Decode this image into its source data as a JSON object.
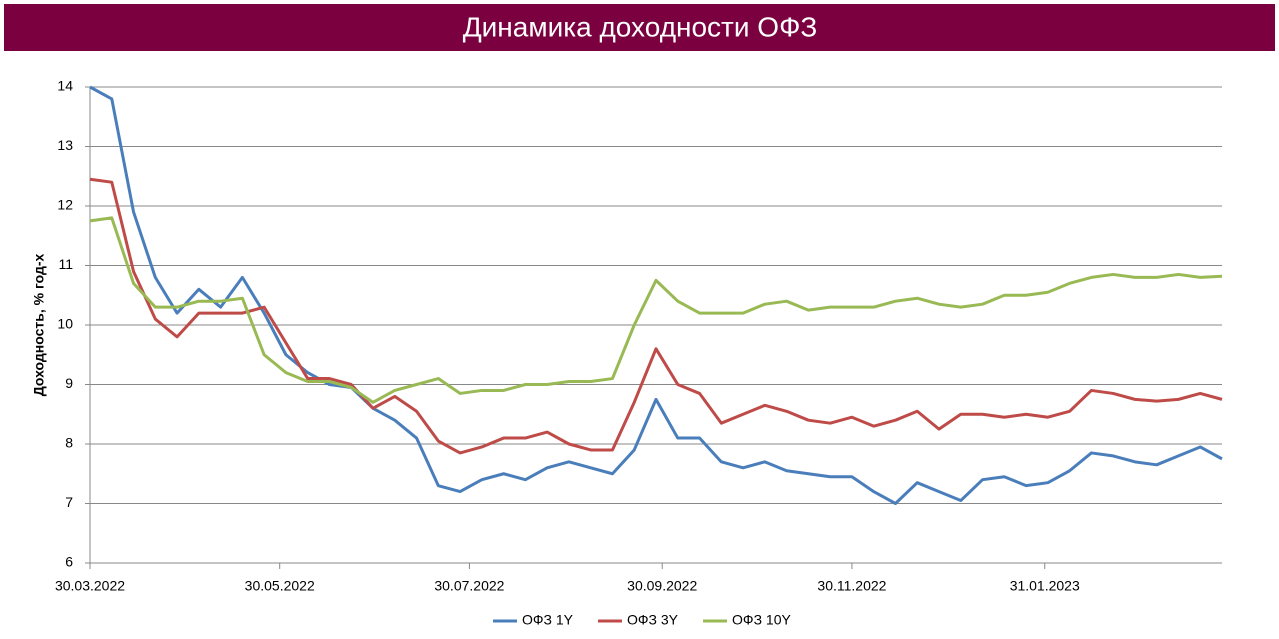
{
  "chart_data": {
    "type": "line",
    "title": "Динамика доходности ОФЗ",
    "y_label": "Доходность, % год-х",
    "x": [
      "30.03.2022",
      "06.04.2022",
      "13.04.2022",
      "20.04.2022",
      "27.04.2022",
      "04.05.2022",
      "11.05.2022",
      "18.05.2022",
      "25.05.2022",
      "01.06.2022",
      "08.06.2022",
      "15.06.2022",
      "22.06.2022",
      "29.06.2022",
      "06.07.2022",
      "13.07.2022",
      "20.07.2022",
      "27.07.2022",
      "03.08.2022",
      "10.08.2022",
      "17.08.2022",
      "24.08.2022",
      "31.08.2022",
      "07.09.2022",
      "14.09.2022",
      "21.09.2022",
      "28.09.2022",
      "05.10.2022",
      "12.10.2022",
      "19.10.2022",
      "26.10.2022",
      "02.11.2022",
      "09.11.2022",
      "16.11.2022",
      "23.11.2022",
      "30.11.2022",
      "07.12.2022",
      "14.12.2022",
      "21.12.2022",
      "28.12.2022",
      "04.01.2023",
      "11.01.2023",
      "18.01.2023",
      "25.01.2023",
      "01.02.2023",
      "08.02.2023",
      "15.02.2023",
      "22.02.2023",
      "01.03.2023",
      "08.03.2023",
      "15.03.2023",
      "22.03.2023",
      "29.03.2023"
    ],
    "series": [
      {
        "name": "ОФЗ 1Y",
        "color": "#4a7ebb",
        "values": [
          14.0,
          13.8,
          11.9,
          10.8,
          10.2,
          10.6,
          10.3,
          10.8,
          10.2,
          9.5,
          9.2,
          9.0,
          8.95,
          8.6,
          8.4,
          8.1,
          7.3,
          7.2,
          7.4,
          7.5,
          7.4,
          7.6,
          7.7,
          7.6,
          7.5,
          7.9,
          8.75,
          8.1,
          8.1,
          7.7,
          7.6,
          7.7,
          7.55,
          7.5,
          7.45,
          7.45,
          7.2,
          7.0,
          7.35,
          7.2,
          7.05,
          7.4,
          7.45,
          7.3,
          7.35,
          7.55,
          7.85,
          7.8,
          7.7,
          7.65,
          7.8,
          7.95,
          7.75
        ]
      },
      {
        "name": "ОФЗ 3Y",
        "color": "#be4b48",
        "values": [
          12.45,
          12.4,
          10.9,
          10.1,
          9.8,
          10.2,
          10.2,
          10.2,
          10.3,
          9.7,
          9.1,
          9.1,
          9.0,
          8.6,
          8.8,
          8.55,
          8.05,
          7.85,
          7.95,
          8.1,
          8.1,
          8.2,
          8.0,
          7.9,
          7.9,
          8.7,
          9.6,
          9.0,
          8.85,
          8.35,
          8.5,
          8.65,
          8.55,
          8.4,
          8.35,
          8.45,
          8.3,
          8.4,
          8.55,
          8.25,
          8.5,
          8.5,
          8.45,
          8.5,
          8.45,
          8.55,
          8.9,
          8.85,
          8.75,
          8.72,
          8.75,
          8.85,
          8.75
        ]
      },
      {
        "name": "ОФЗ 10Y",
        "color": "#98b954",
        "values": [
          11.75,
          11.8,
          10.7,
          10.3,
          10.3,
          10.4,
          10.4,
          10.45,
          9.5,
          9.2,
          9.05,
          9.05,
          8.95,
          8.7,
          8.9,
          9.0,
          9.1,
          8.85,
          8.9,
          8.9,
          9.0,
          9.0,
          9.05,
          9.05,
          9.1,
          10.0,
          10.75,
          10.4,
          10.2,
          10.2,
          10.2,
          10.35,
          10.4,
          10.25,
          10.3,
          10.3,
          10.3,
          10.4,
          10.45,
          10.35,
          10.3,
          10.35,
          10.5,
          10.5,
          10.55,
          10.7,
          10.8,
          10.85,
          10.8,
          10.8,
          10.85,
          10.8,
          10.82
        ]
      }
    ],
    "xlim": [
      "30.03.2022",
      "29.03.2023"
    ],
    "xticks": [
      "30.03.2022",
      "30.05.2022",
      "30.07.2022",
      "30.09.2022",
      "30.11.2022",
      "31.01.2023"
    ],
    "ylim": [
      6,
      14
    ],
    "yticks": [
      6,
      7,
      8,
      9,
      10,
      11,
      12,
      13,
      14
    ],
    "grid": true,
    "legend": "bottom"
  }
}
